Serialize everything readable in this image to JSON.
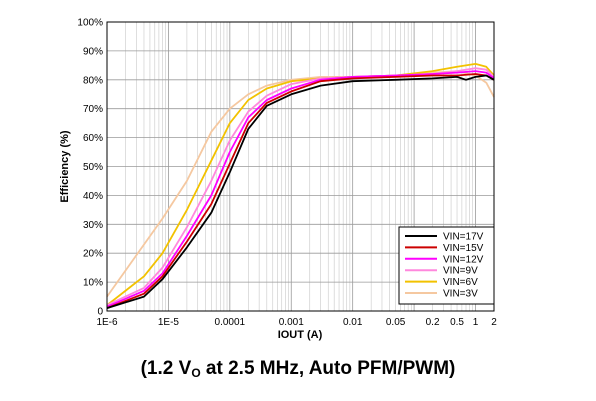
{
  "chart_data": {
    "type": "line",
    "xlabel": "IOUT (A)",
    "ylabel": "Efficiency (%)",
    "xscale": "log",
    "xlim": [
      1e-06,
      2
    ],
    "ylim": [
      0,
      100
    ],
    "grid": true,
    "legend_placement": "bottom-right",
    "x_ticks": [
      {
        "value": 1e-06,
        "label": "1E-6"
      },
      {
        "value": 1e-05,
        "label": "1E-5"
      },
      {
        "value": 0.0001,
        "label": "0.0001"
      },
      {
        "value": 0.001,
        "label": "0.001"
      },
      {
        "value": 0.01,
        "label": "0.01"
      },
      {
        "value": 0.05,
        "label": "0.05"
      },
      {
        "value": 0.2,
        "label": "0.2"
      },
      {
        "value": 0.5,
        "label": "0.5"
      },
      {
        "value": 1,
        "label": "1"
      },
      {
        "value": 2,
        "label": "2"
      }
    ],
    "y_ticks": [
      {
        "value": 0,
        "label": "0"
      },
      {
        "value": 10,
        "label": "10%"
      },
      {
        "value": 20,
        "label": "20%"
      },
      {
        "value": 30,
        "label": "30%"
      },
      {
        "value": 40,
        "label": "40%"
      },
      {
        "value": 50,
        "label": "50%"
      },
      {
        "value": 60,
        "label": "60%"
      },
      {
        "value": 70,
        "label": "70%"
      },
      {
        "value": 80,
        "label": "80%"
      },
      {
        "value": 90,
        "label": "90%"
      },
      {
        "value": 100,
        "label": "100%"
      }
    ],
    "series": [
      {
        "name": "VIN=17V",
        "color": "#000000",
        "points": [
          [
            1e-06,
            1
          ],
          [
            4e-06,
            5
          ],
          [
            8e-06,
            11
          ],
          [
            2e-05,
            22
          ],
          [
            5e-05,
            34
          ],
          [
            0.0001,
            48
          ],
          [
            0.0002,
            63
          ],
          [
            0.0004,
            71
          ],
          [
            0.001,
            75
          ],
          [
            0.003,
            78
          ],
          [
            0.01,
            79.5
          ],
          [
            0.05,
            80
          ],
          [
            0.2,
            80.5
          ],
          [
            0.5,
            81
          ],
          [
            0.7,
            80
          ],
          [
            1,
            81
          ],
          [
            1.5,
            81.5
          ],
          [
            2,
            80
          ]
        ]
      },
      {
        "name": "VIN=15V",
        "color": "#cc0000",
        "points": [
          [
            1e-06,
            1
          ],
          [
            4e-06,
            6
          ],
          [
            8e-06,
            12
          ],
          [
            2e-05,
            24
          ],
          [
            5e-05,
            37
          ],
          [
            0.0001,
            51
          ],
          [
            0.0002,
            65
          ],
          [
            0.0004,
            72
          ],
          [
            0.001,
            76
          ],
          [
            0.003,
            79.5
          ],
          [
            0.01,
            80.5
          ],
          [
            0.05,
            81
          ],
          [
            0.2,
            81.5
          ],
          [
            0.5,
            81.5
          ],
          [
            1,
            82
          ],
          [
            1.5,
            81.5
          ],
          [
            2,
            80
          ]
        ]
      },
      {
        "name": "VIN=12V",
        "color": "#ff00ff",
        "points": [
          [
            1e-06,
            1.5
          ],
          [
            4e-06,
            7
          ],
          [
            8e-06,
            13
          ],
          [
            2e-05,
            26
          ],
          [
            5e-05,
            40
          ],
          [
            0.0001,
            55
          ],
          [
            0.0002,
            67
          ],
          [
            0.0004,
            73
          ],
          [
            0.001,
            77
          ],
          [
            0.003,
            80
          ],
          [
            0.01,
            81
          ],
          [
            0.05,
            81.5
          ],
          [
            0.2,
            82
          ],
          [
            0.5,
            82.5
          ],
          [
            1,
            83
          ],
          [
            1.5,
            82.5
          ],
          [
            2,
            80.5
          ]
        ]
      },
      {
        "name": "VIN=9V",
        "color": "#ff88dd",
        "points": [
          [
            1e-06,
            2
          ],
          [
            4e-06,
            8
          ],
          [
            8e-06,
            15
          ],
          [
            2e-05,
            29
          ],
          [
            5e-05,
            45
          ],
          [
            0.0001,
            59
          ],
          [
            0.0002,
            69
          ],
          [
            0.0004,
            74.5
          ],
          [
            0.001,
            78.5
          ],
          [
            0.003,
            80.5
          ],
          [
            0.01,
            81
          ],
          [
            0.05,
            81.5
          ],
          [
            0.2,
            82
          ],
          [
            0.5,
            83
          ],
          [
            1,
            84
          ],
          [
            1.5,
            83.5
          ],
          [
            2,
            81
          ]
        ]
      },
      {
        "name": "VIN=6V",
        "color": "#f2c200",
        "points": [
          [
            1e-06,
            2
          ],
          [
            4e-06,
            12
          ],
          [
            8e-06,
            20
          ],
          [
            2e-05,
            35
          ],
          [
            5e-05,
            52
          ],
          [
            0.0001,
            65
          ],
          [
            0.0002,
            73
          ],
          [
            0.0004,
            77
          ],
          [
            0.001,
            79.5
          ],
          [
            0.003,
            80.5
          ],
          [
            0.01,
            81
          ],
          [
            0.05,
            81.5
          ],
          [
            0.2,
            83
          ],
          [
            0.5,
            84.5
          ],
          [
            1,
            85.5
          ],
          [
            1.5,
            84.5
          ],
          [
            2,
            81.5
          ]
        ]
      },
      {
        "name": "VIN=3V",
        "color": "#f5c8a0",
        "points": [
          [
            1e-06,
            5
          ],
          [
            4e-06,
            23
          ],
          [
            8e-06,
            32
          ],
          [
            2e-05,
            45
          ],
          [
            5e-05,
            62
          ],
          [
            0.0001,
            70
          ],
          [
            0.0002,
            75
          ],
          [
            0.0004,
            78
          ],
          [
            0.001,
            80
          ],
          [
            0.003,
            81
          ],
          [
            0.01,
            81
          ],
          [
            0.05,
            81.5
          ],
          [
            0.2,
            82.5
          ],
          [
            0.5,
            83
          ],
          [
            1,
            81.5
          ],
          [
            1.5,
            79
          ],
          [
            2,
            74
          ]
        ]
      }
    ]
  },
  "caption": {
    "prefix": "(1.2 V",
    "subscript": "O",
    "suffix": " at 2.5 MHz, Auto PFM/PWM)"
  }
}
